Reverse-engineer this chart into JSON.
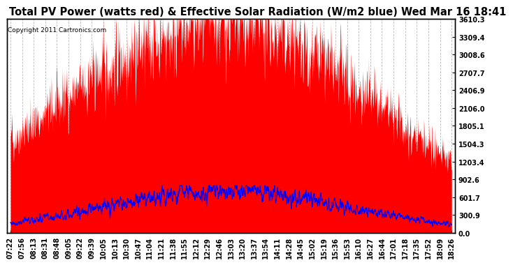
{
  "title": "Total PV Power (watts red) & Effective Solar Radiation (W/m2 blue) Wed Mar 16 18:41",
  "copyright": "Copyright 2011 Cartronics.com",
  "ylabel_right_ticks": [
    0.0,
    300.9,
    601.7,
    902.6,
    1203.4,
    1504.3,
    1805.1,
    2106.0,
    2406.9,
    2707.7,
    3008.6,
    3309.4,
    3610.3
  ],
  "bg_color": "#ffffff",
  "grid_color": "#bbbbbb",
  "pv_color": "red",
  "solar_color": "blue",
  "title_fontsize": 10.5,
  "copyright_fontsize": 6.5,
  "tick_fontsize": 7.0,
  "ymax": 3610.3,
  "solar_peak": 700.0,
  "pv_peak": 3500.0
}
